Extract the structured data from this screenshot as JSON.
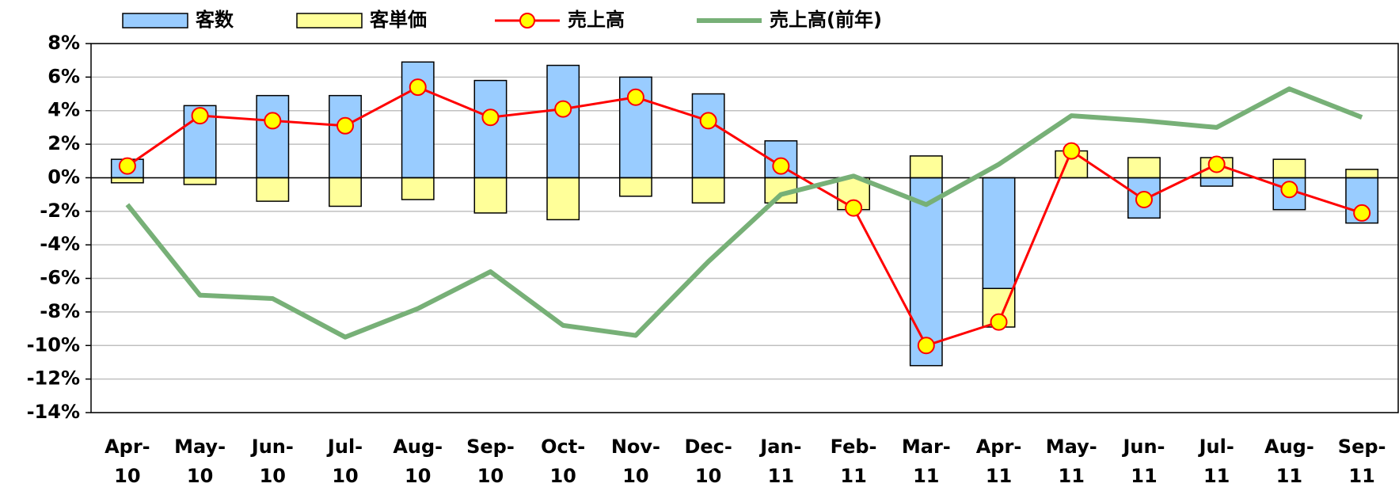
{
  "chart_data": {
    "type": "bar_line",
    "categories": [
      "Apr-10",
      "May-10",
      "Jun-10",
      "Jul-10",
      "Aug-10",
      "Sep-10",
      "Oct-10",
      "Nov-10",
      "Dec-10",
      "Jan-11",
      "Feb-11",
      "Mar-11",
      "Apr-11",
      "May-11",
      "Jun-11",
      "Jul-11",
      "Aug-11",
      "Sep-11"
    ],
    "series": [
      {
        "name": "客数",
        "type": "bar",
        "color": "#99ccff",
        "values": [
          1.1,
          4.3,
          4.9,
          4.9,
          6.9,
          5.8,
          6.7,
          6.0,
          5.0,
          2.2,
          0,
          -11.2,
          -6.6,
          0,
          -2.4,
          -0.5,
          -1.9,
          -2.7
        ]
      },
      {
        "name": "客単価",
        "type": "bar",
        "color": "#ffff99",
        "values": [
          -0.3,
          -0.4,
          -1.4,
          -1.7,
          -1.3,
          -2.1,
          -2.5,
          -1.1,
          -1.5,
          -1.5,
          -1.9,
          1.3,
          -2.3,
          1.6,
          1.2,
          1.2,
          1.1,
          0.5
        ]
      },
      {
        "name": "売上高",
        "type": "line",
        "color": "#ff0000",
        "marker_color": "#ffff00",
        "values": [
          0.7,
          3.7,
          3.4,
          3.1,
          5.4,
          3.6,
          4.1,
          4.8,
          3.4,
          0.7,
          -1.8,
          -10.0,
          -8.6,
          1.6,
          -1.3,
          0.8,
          -0.7,
          -2.1
        ]
      },
      {
        "name": "売上高(前年)",
        "type": "line",
        "color": "#77b077",
        "values": [
          -1.6,
          -7.0,
          -7.2,
          -9.5,
          -7.8,
          -5.6,
          -8.8,
          -9.4,
          -5.0,
          -1.0,
          0.1,
          -1.6,
          0.8,
          3.7,
          3.4,
          3.0,
          5.3,
          3.6
        ]
      }
    ],
    "ylim": [
      -14,
      8
    ],
    "yticks": [
      {
        "value": -14,
        "label": "-14%"
      },
      {
        "value": -12,
        "label": "-12%"
      },
      {
        "value": -10,
        "label": "-10%"
      },
      {
        "value": -8,
        "label": "-8%"
      },
      {
        "value": -6,
        "label": "-6%"
      },
      {
        "value": -4,
        "label": "-4%"
      },
      {
        "value": -2,
        "label": "-2%"
      },
      {
        "value": 0,
        "label": "0%"
      },
      {
        "value": 2,
        "label": "2%"
      },
      {
        "value": 4,
        "label": "4%"
      },
      {
        "value": 6,
        "label": "6%"
      },
      {
        "value": 8,
        "label": "8%"
      }
    ],
    "grid": true,
    "legend": "top"
  }
}
